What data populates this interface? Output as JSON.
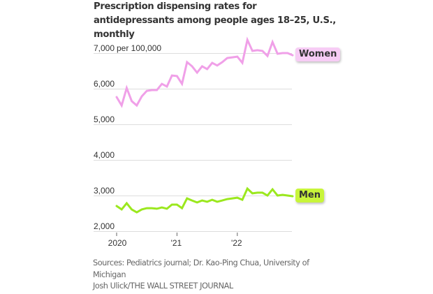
{
  "title": "Prescription dispensing rates for antidepressants among people ages 18–25, U.S., monthly",
  "footer": {
    "sources": "Sources: Pediatrics journal; Dr. Kao-Ping Chua, University of Michigan",
    "credit": "Josh Ulick/THE WALL STREET JOURNAL"
  },
  "chart_data": {
    "type": "line",
    "title": "Prescription dispensing rates for antidepressants among people ages 18–25, U.S., monthly",
    "xlabel": "",
    "ylabel": "per 100,000",
    "unit_label": "per 100,000",
    "ylim": [
      2000,
      7000
    ],
    "yticks": [
      2000,
      3000,
      4000,
      5000,
      6000,
      7000
    ],
    "ytick_labels": [
      "2,000",
      "3,000",
      "4,000",
      "5,000",
      "6,000",
      "7,000"
    ],
    "xticks": [
      0,
      12,
      24
    ],
    "xtick_labels": [
      "2020",
      "'21",
      "'22"
    ],
    "grid": true,
    "legend": "direct-labels-right",
    "x": [
      "2020-01",
      "2020-02",
      "2020-03",
      "2020-04",
      "2020-05",
      "2020-06",
      "2020-07",
      "2020-08",
      "2020-09",
      "2020-10",
      "2020-11",
      "2020-12",
      "2021-01",
      "2021-02",
      "2021-03",
      "2021-04",
      "2021-05",
      "2021-06",
      "2021-07",
      "2021-08",
      "2021-09",
      "2021-10",
      "2021-11",
      "2021-12",
      "2022-01",
      "2022-02",
      "2022-03",
      "2022-04",
      "2022-05",
      "2022-06",
      "2022-07",
      "2022-08",
      "2022-09",
      "2022-10",
      "2022-11",
      "2022-12"
    ],
    "series": [
      {
        "name": "Women",
        "color": "#f0a0e8",
        "label_bg": "#f7ccf5",
        "values": [
          5765,
          5530,
          6020,
          5650,
          5530,
          5785,
          5940,
          5960,
          5960,
          6135,
          6060,
          6370,
          6355,
          6135,
          6745,
          6630,
          6450,
          6630,
          6550,
          6725,
          6650,
          6745,
          6860,
          6880,
          6900,
          6725,
          7370,
          7060,
          7080,
          7060,
          6920,
          7310,
          6980,
          7000,
          7000,
          6940
        ]
      },
      {
        "name": "Men",
        "color": "#9be81e",
        "label_bg": "#c8f53a",
        "values": [
          2705,
          2610,
          2785,
          2610,
          2530,
          2610,
          2645,
          2645,
          2630,
          2665,
          2630,
          2745,
          2745,
          2645,
          2920,
          2860,
          2805,
          2860,
          2825,
          2880,
          2825,
          2860,
          2900,
          2920,
          2940,
          2880,
          3195,
          3060,
          3080,
          3080,
          3000,
          3175,
          3000,
          3020,
          3000,
          2980
        ]
      }
    ]
  }
}
